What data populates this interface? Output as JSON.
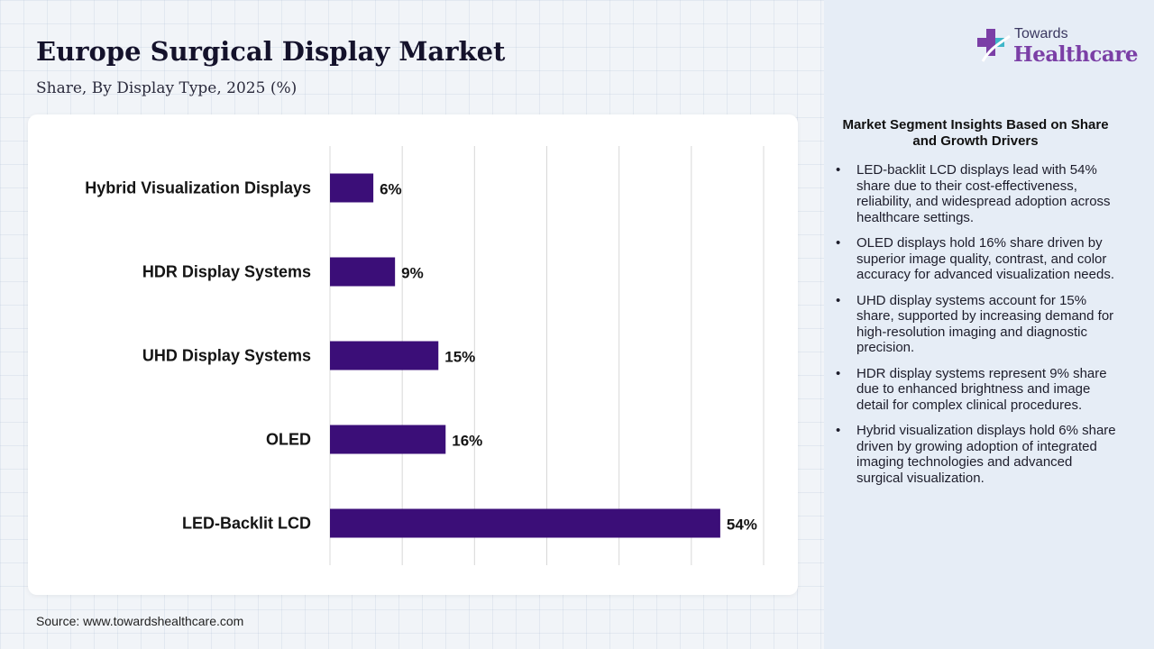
{
  "title": "Europe Surgical Display Market",
  "subtitle": "Share, By Display Type, 2025 (%)",
  "source": "Source: www.towardshealthcare.com",
  "logo": {
    "top": "Towards",
    "bottom": "Healthcare",
    "icon": "medical-cross-logo-icon"
  },
  "colors": {
    "bar": "#3b0e78",
    "logo_accent": "#7b3fa6",
    "panel": "#e6edf6",
    "grid": "#d8d8d8"
  },
  "insights": {
    "title": "Market Segment Insights Based on Share and Growth Drivers",
    "items": [
      "LED-backlit LCD displays lead with 54% share due to their cost-effectiveness, reliability, and widespread adoption across healthcare settings.",
      "OLED displays hold 16% share driven by superior image quality, contrast, and color accuracy for advanced visualization needs.",
      "UHD display systems account for 15% share, supported by increasing demand for high-resolution imaging and diagnostic precision.",
      "HDR display systems represent 9% share due to enhanced brightness and image detail for complex clinical procedures.",
      "Hybrid visualization displays hold 6% share driven by growing adoption of integrated imaging technologies and advanced surgical visualization."
    ]
  },
  "chart_data": {
    "type": "bar",
    "orientation": "horizontal",
    "categories": [
      "Hybrid Visualization Displays",
      "HDR Display Systems",
      "UHD Display Systems",
      "OLED",
      "LED-Backlit LCD"
    ],
    "values": [
      6,
      9,
      15,
      16,
      54
    ],
    "data_labels": [
      "6%",
      "9%",
      "15%",
      "16%",
      "54%"
    ],
    "xlim": [
      0,
      60
    ],
    "grid": true,
    "legend": "none"
  }
}
